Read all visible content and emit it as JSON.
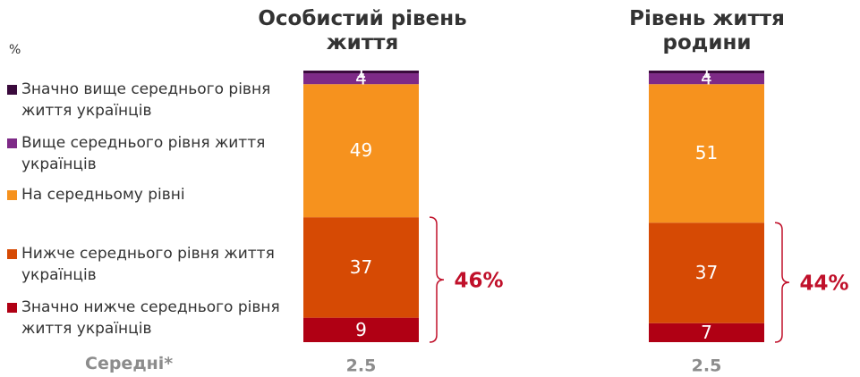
{
  "chart_data": {
    "type": "stacked_bar",
    "unit_label": "%",
    "categories": [
      "Особистий рівень життя",
      "Рівень життя родини"
    ],
    "series": [
      {
        "name": "Значно нижче середнього рівня життя українців",
        "color": "#b00014",
        "values": [
          9,
          7
        ]
      },
      {
        "name": "Нижче середнього рівня життя українців",
        "color": "#d64a04",
        "values": [
          37,
          37
        ]
      },
      {
        "name": "На середньому рівні",
        "color": "#f6921e",
        "values": [
          49,
          51
        ]
      },
      {
        "name": "Вище середнього рівня життя українців",
        "color": "#7e2a87",
        "values": [
          4,
          4
        ]
      },
      {
        "name": "Значно вище середнього рівня життя українців",
        "color": "#3a0a3c",
        "values": [
          1,
          1
        ]
      }
    ],
    "annotations": [
      "46%",
      "44%"
    ],
    "averages": {
      "label": "Середні*",
      "values": [
        2.5,
        2.5
      ]
    }
  }
}
